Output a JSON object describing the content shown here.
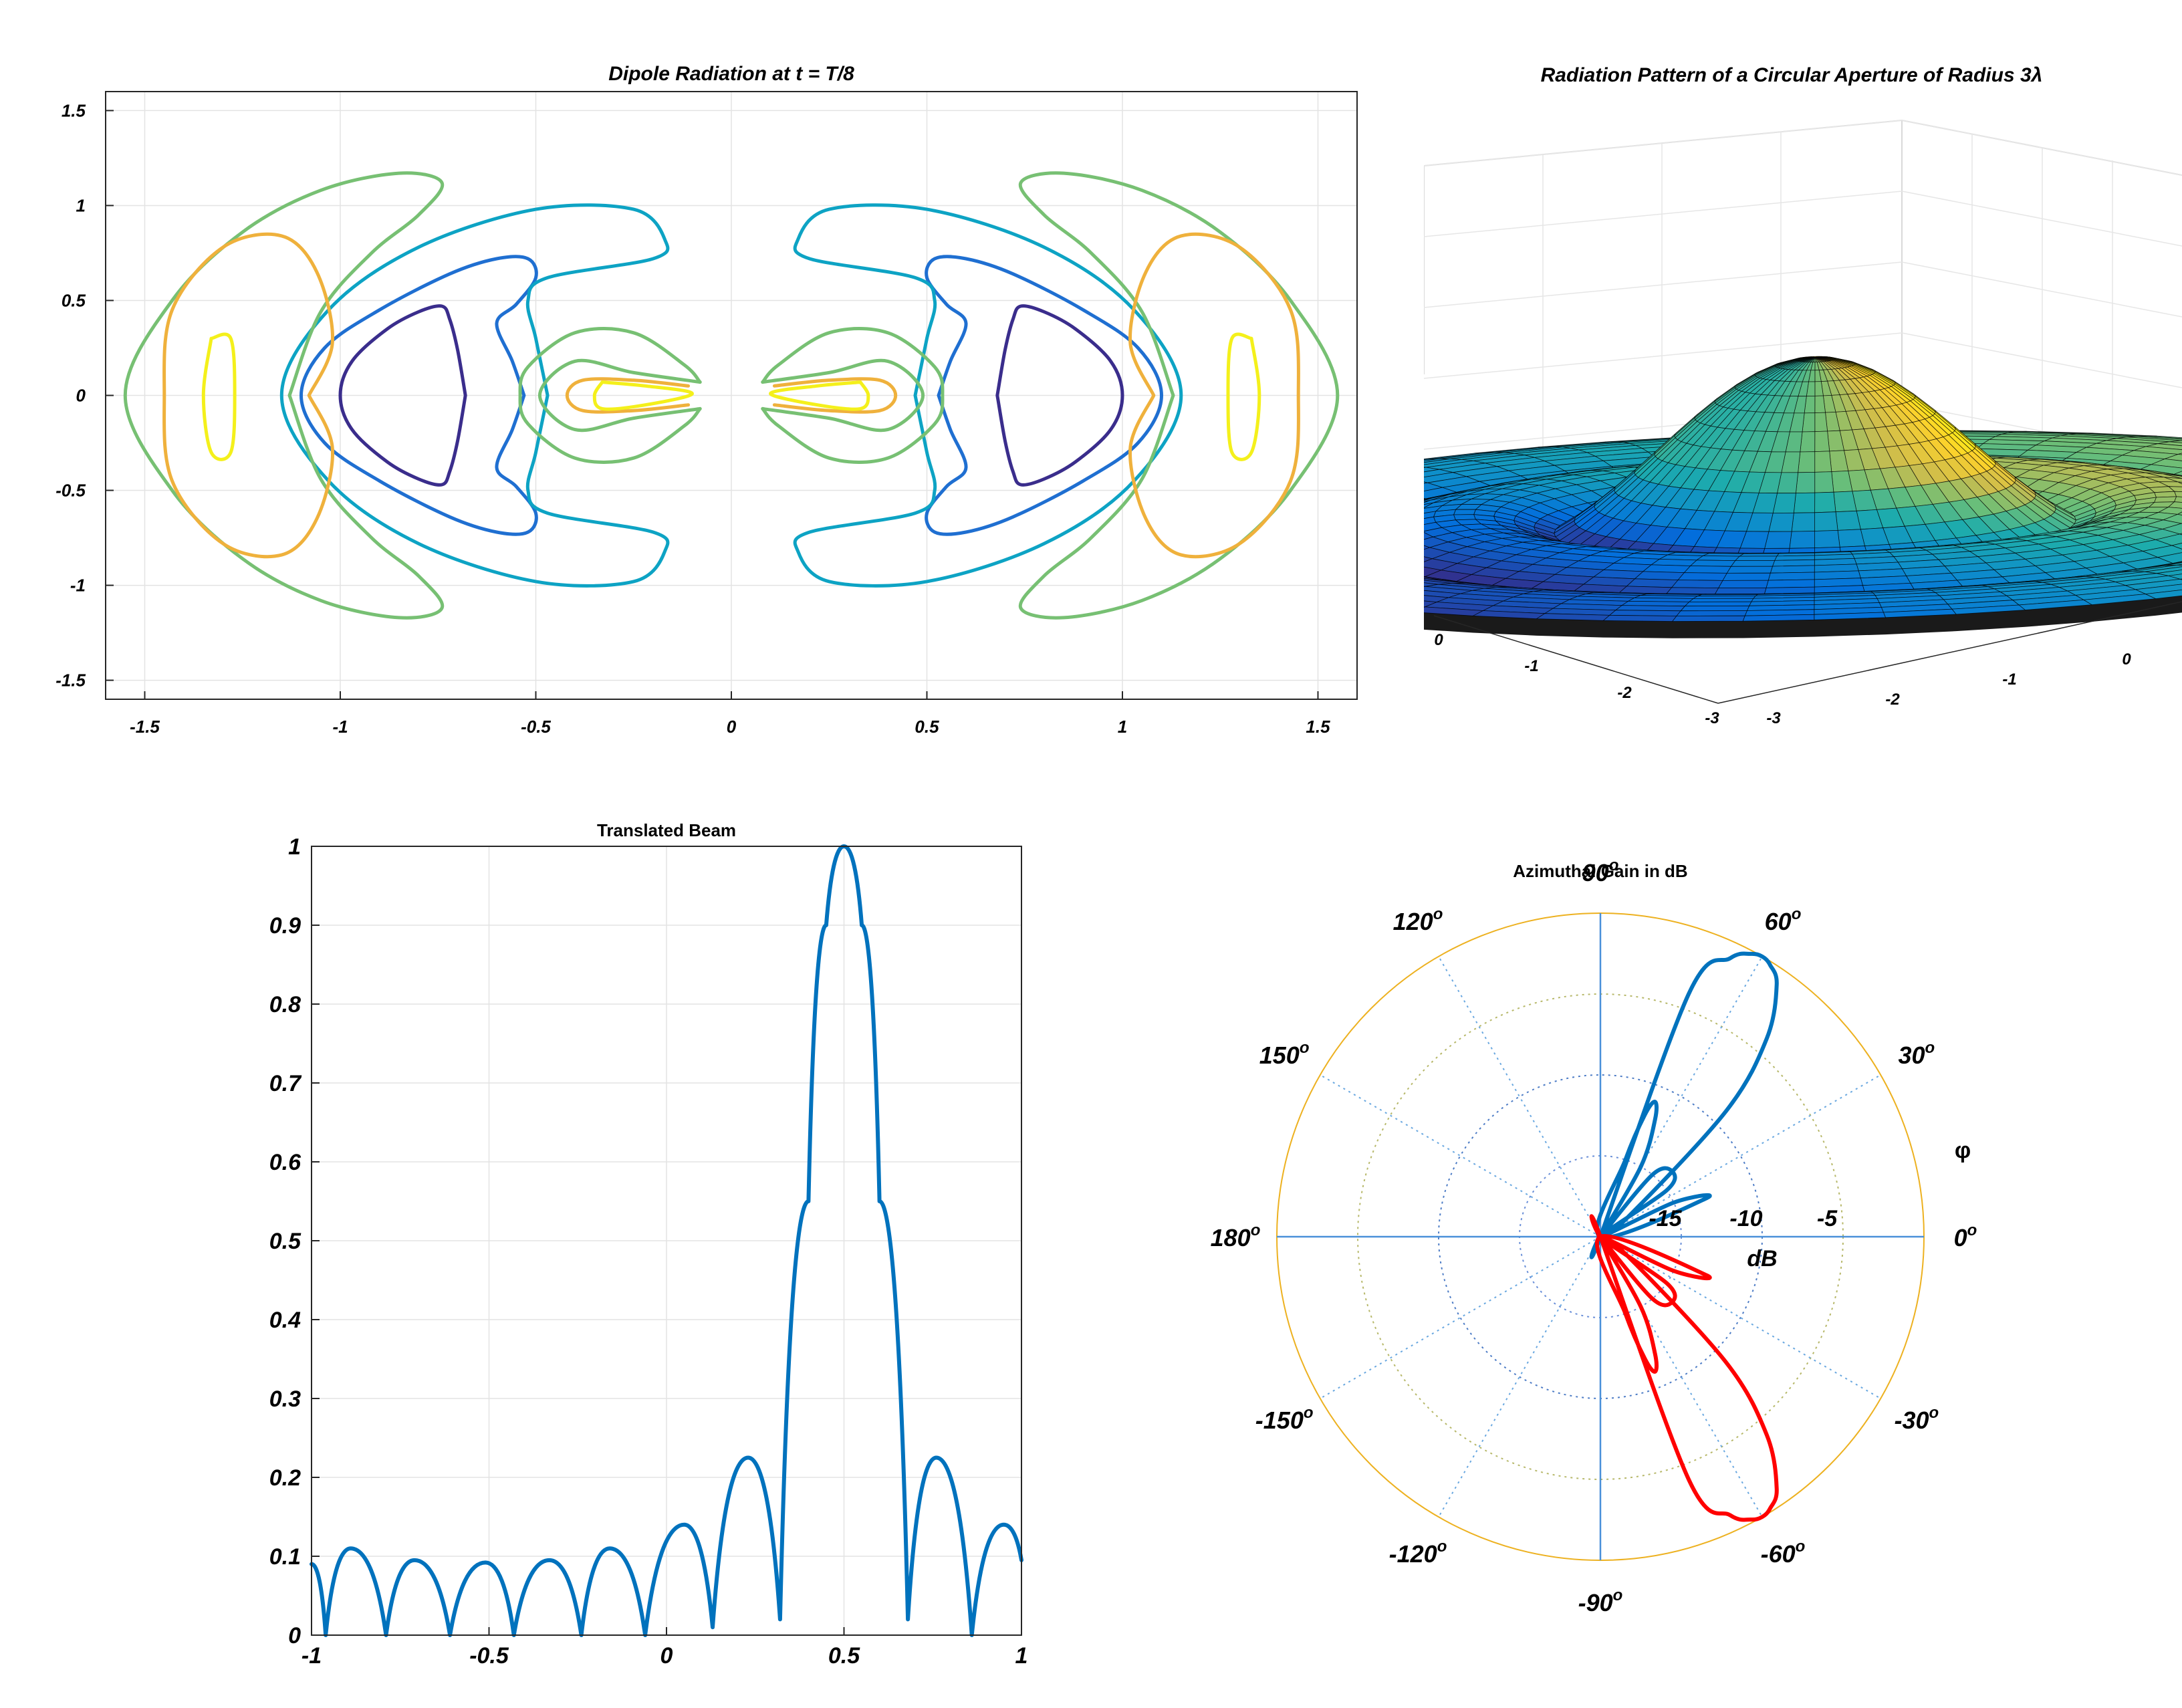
{
  "chart_data": [
    {
      "type": "contour",
      "title": "Dipole Radiation at t = T/8",
      "xlabel": "",
      "ylabel": "",
      "xlim": [
        -1.6,
        1.6
      ],
      "ylim": [
        -1.6,
        1.6
      ],
      "x_ticks": [
        "-1.5",
        "-1",
        "-0.5",
        "0",
        "0.5",
        "1",
        "1.5"
      ],
      "y_ticks": [
        "1.5",
        "1",
        "0.5",
        "0",
        "-0.5",
        "-1",
        "-1.5"
      ],
      "grid": true,
      "series": [
        {
          "color": "#3a2d8c",
          "curves": [
            {
              "x": [
                -0.68,
                -0.7,
                -0.72,
                -0.74,
                -0.8,
                -0.88,
                -0.97,
                -1.0,
                -0.97,
                -0.88,
                -0.8,
                -0.74,
                -0.72,
                -0.7,
                -0.68
              ],
              "y": [
                0.0,
                0.24,
                0.4,
                0.47,
                0.44,
                0.35,
                0.18,
                0.0,
                -0.18,
                -0.35,
                -0.44,
                -0.47,
                -0.4,
                -0.24,
                0.0
              ]
            },
            {
              "x": [
                0.68,
                0.7,
                0.72,
                0.74,
                0.8,
                0.88,
                0.97,
                1.0,
                0.97,
                0.88,
                0.8,
                0.74,
                0.72,
                0.7,
                0.68
              ],
              "y": [
                0.0,
                0.24,
                0.4,
                0.47,
                0.44,
                0.35,
                0.18,
                0.0,
                -0.18,
                -0.35,
                -0.44,
                -0.47,
                -0.4,
                -0.24,
                0.0
              ]
            }
          ]
        },
        {
          "color": "#1f6fd1",
          "curves": [
            {
              "x": [
                -0.53,
                -0.56,
                -0.6,
                -0.55,
                -0.5,
                -0.52,
                -0.6,
                -0.72,
                -0.9,
                -1.04,
                -1.1,
                -1.04,
                -0.9,
                -0.72,
                -0.6,
                -0.52,
                -0.5,
                -0.55,
                -0.6,
                -0.56,
                -0.53
              ],
              "y": [
                0.0,
                0.18,
                0.38,
                0.48,
                0.62,
                0.72,
                0.72,
                0.64,
                0.45,
                0.25,
                0.0,
                -0.25,
                -0.45,
                -0.64,
                -0.72,
                -0.72,
                -0.62,
                -0.48,
                -0.38,
                -0.18,
                0.0
              ]
            },
            {
              "x": [
                0.53,
                0.56,
                0.6,
                0.55,
                0.5,
                0.52,
                0.6,
                0.72,
                0.9,
                1.04,
                1.1,
                1.04,
                0.9,
                0.72,
                0.6,
                0.52,
                0.5,
                0.55,
                0.6,
                0.56,
                0.53
              ],
              "y": [
                0.0,
                0.18,
                0.38,
                0.48,
                0.62,
                0.72,
                0.72,
                0.64,
                0.45,
                0.25,
                0.0,
                -0.25,
                -0.45,
                -0.64,
                -0.72,
                -0.72,
                -0.62,
                -0.48,
                -0.38,
                -0.18,
                0.0
              ]
            }
          ]
        },
        {
          "color": "#0da3c4",
          "curves": [
            {
              "x": [
                -0.47,
                -0.5,
                -0.52,
                -0.47,
                -0.2,
                -0.17,
                -0.25,
                -0.5,
                -0.8,
                -1.03,
                -1.15,
                -1.03,
                -0.8,
                -0.5,
                -0.25,
                -0.17,
                -0.2,
                -0.47,
                -0.52,
                -0.5,
                -0.47
              ],
              "y": [
                0.0,
                0.3,
                0.5,
                0.62,
                0.72,
                0.82,
                0.98,
                0.98,
                0.78,
                0.45,
                0.0,
                -0.45,
                -0.78,
                -0.98,
                -0.98,
                -0.82,
                -0.72,
                -0.62,
                -0.5,
                -0.3,
                0.0
              ]
            },
            {
              "x": [
                0.47,
                0.5,
                0.52,
                0.47,
                0.2,
                0.17,
                0.25,
                0.5,
                0.8,
                1.03,
                1.15,
                1.03,
                0.8,
                0.5,
                0.25,
                0.17,
                0.2,
                0.47,
                0.52,
                0.5,
                0.47
              ],
              "y": [
                0.0,
                0.3,
                0.5,
                0.62,
                0.72,
                0.82,
                0.98,
                0.98,
                0.78,
                0.45,
                0.0,
                -0.45,
                -0.78,
                -0.98,
                -0.98,
                -0.82,
                -0.72,
                -0.62,
                -0.5,
                -0.3,
                0.0
              ]
            }
          ]
        },
        {
          "color": "#77c073",
          "curves": [
            {
              "x": [
                -0.08,
                -0.25,
                -0.4,
                -0.49,
                -0.4,
                -0.25,
                -0.08
              ],
              "y": [
                0.07,
                0.12,
                0.18,
                0.0,
                -0.18,
                -0.12,
                -0.07
              ]
            },
            {
              "x": [
                0.08,
                0.25,
                0.4,
                0.49,
                0.4,
                0.25,
                0.08
              ],
              "y": [
                0.07,
                0.12,
                0.18,
                0.0,
                -0.18,
                -0.12,
                -0.07
              ]
            },
            {
              "x": [
                -0.08,
                -0.12,
                -0.25,
                -0.4,
                -0.52,
                -0.54,
                -0.52,
                -0.4,
                -0.25,
                -0.12,
                -0.08
              ],
              "y": [
                0.07,
                0.16,
                0.33,
                0.33,
                0.15,
                0.0,
                -0.15,
                -0.33,
                -0.33,
                -0.16,
                -0.07
              ]
            },
            {
              "x": [
                0.08,
                0.12,
                0.25,
                0.4,
                0.52,
                0.54,
                0.52,
                0.4,
                0.25,
                0.12,
                0.08
              ],
              "y": [
                0.07,
                0.16,
                0.33,
                0.33,
                0.15,
                0.0,
                -0.15,
                -0.33,
                -0.33,
                -0.16,
                -0.07
              ]
            },
            {
              "x": [
                -1.13,
                -1.05,
                -0.92,
                -0.8,
                -0.74,
                -0.85,
                -1.05,
                -1.25,
                -1.43,
                -1.55,
                -1.43,
                -1.25,
                -1.05,
                -0.85,
                -0.74,
                -0.8,
                -0.92,
                -1.05,
                -1.13
              ],
              "y": [
                0.0,
                0.44,
                0.75,
                0.95,
                1.12,
                1.17,
                1.08,
                0.86,
                0.5,
                0.0,
                -0.5,
                -0.86,
                -1.08,
                -1.17,
                -1.12,
                -0.95,
                -0.75,
                -0.44,
                0.0
              ]
            },
            {
              "x": [
                1.13,
                1.05,
                0.92,
                0.8,
                0.74,
                0.85,
                1.05,
                1.25,
                1.43,
                1.55,
                1.43,
                1.25,
                1.05,
                0.85,
                0.74,
                0.8,
                0.92,
                1.05,
                1.13
              ],
              "y": [
                0.0,
                0.44,
                0.75,
                0.95,
                1.12,
                1.17,
                1.08,
                0.86,
                0.5,
                0.0,
                -0.5,
                -0.86,
                -1.08,
                -1.17,
                -1.12,
                -0.95,
                -0.75,
                -0.44,
                0.0
              ]
            }
          ]
        },
        {
          "color": "#efb13c",
          "curves": [
            {
              "x": [
                -0.11,
                -0.25,
                -0.38,
                -0.42,
                -0.38,
                -0.25,
                -0.11
              ],
              "y": [
                0.05,
                0.08,
                0.08,
                0.0,
                -0.08,
                -0.08,
                -0.05
              ]
            },
            {
              "x": [
                0.11,
                0.25,
                0.38,
                0.42,
                0.38,
                0.25,
                0.11
              ],
              "y": [
                0.05,
                0.08,
                0.08,
                0.0,
                -0.08,
                -0.08,
                -0.05
              ]
            },
            {
              "x": [
                -1.08,
                -1.02,
                -1.06,
                -1.15,
                -1.3,
                -1.43,
                -1.45,
                -1.43,
                -1.3,
                -1.15,
                -1.06,
                -1.02,
                -1.08
              ],
              "y": [
                0.0,
                0.28,
                0.65,
                0.84,
                0.78,
                0.45,
                0.0,
                -0.45,
                -0.78,
                -0.84,
                -0.65,
                -0.28,
                0.0
              ]
            },
            {
              "x": [
                1.08,
                1.02,
                1.06,
                1.15,
                1.3,
                1.43,
                1.45,
                1.43,
                1.3,
                1.15,
                1.06,
                1.02,
                1.08
              ],
              "y": [
                0.0,
                0.28,
                0.65,
                0.84,
                0.78,
                0.45,
                0.0,
                -0.45,
                -0.78,
                -0.84,
                -0.65,
                -0.28,
                0.0
              ]
            }
          ]
        },
        {
          "color": "#f4f01b",
          "curves": [
            {
              "x": [
                -1.33,
                -1.28,
                -1.27,
                -1.28,
                -1.33,
                -1.35,
                -1.33
              ],
              "y": [
                0.3,
                0.3,
                0.0,
                -0.3,
                -0.3,
                0.0,
                0.3
              ]
            },
            {
              "x": [
                1.33,
                1.28,
                1.27,
                1.28,
                1.33,
                1.35,
                1.33
              ],
              "y": [
                0.3,
                0.3,
                0.0,
                -0.3,
                -0.3,
                0.0,
                0.3
              ]
            },
            {
              "x": [
                -0.33,
                -0.22,
                -0.1,
                -0.22,
                -0.33,
                -0.35,
                -0.33
              ],
              "y": [
                0.07,
                0.05,
                0.01,
                -0.05,
                -0.07,
                0.0,
                0.07
              ]
            },
            {
              "x": [
                0.33,
                0.22,
                0.1,
                0.22,
                0.33,
                0.35,
                0.33
              ],
              "y": [
                0.07,
                0.05,
                0.01,
                -0.05,
                -0.07,
                0.0,
                0.07
              ]
            }
          ]
        }
      ]
    },
    {
      "type": "surface",
      "title": "Radiation Pattern of a Circular Aperture of Radius 3λ",
      "xlabel": "",
      "ylabel": "",
      "zlabel": "",
      "x_ticks": [
        "-3",
        "-2",
        "-1",
        "0"
      ],
      "y_ticks": [
        "-3",
        "-2",
        "-1",
        "0"
      ],
      "xlim": [
        -3,
        3
      ],
      "ylim": [
        -3,
        3
      ],
      "zlim": [
        0,
        1
      ],
      "grid": true,
      "function": "Airy pattern |2 J1(ka sinθ)/(ka sinθ)|",
      "radius_wavelengths": 3,
      "colormap": "parula"
    },
    {
      "type": "line",
      "title": "Translated Beam",
      "xlabel": "",
      "ylabel": "",
      "xlim": [
        -1,
        1
      ],
      "ylim": [
        0,
        1
      ],
      "x_ticks": [
        "-1",
        "-0.5",
        "0",
        "0.5",
        "1"
      ],
      "y_ticks": [
        "0",
        "0.1",
        "0.2",
        "0.3",
        "0.4",
        "0.5",
        "0.6",
        "0.7",
        "0.8",
        "0.9",
        "1"
      ],
      "grid": true,
      "series": [
        {
          "color": "#0072bd",
          "x": [
            -1.0,
            -0.96,
            -0.89,
            -0.79,
            -0.71,
            -0.61,
            -0.51,
            -0.43,
            -0.33,
            -0.24,
            -0.16,
            -0.06,
            0.05,
            0.13,
            0.23,
            0.32,
            0.4,
            0.45,
            0.5,
            0.55,
            0.6,
            0.68,
            0.76,
            0.86,
            0.95,
            1.0
          ],
          "y": [
            0.09,
            0.0,
            0.11,
            0.0,
            0.095,
            0.0,
            0.092,
            0.0,
            0.095,
            0.0,
            0.11,
            0.0,
            0.14,
            0.01,
            0.225,
            0.02,
            0.55,
            0.9,
            1.0,
            0.9,
            0.55,
            0.02,
            0.225,
            0.0,
            0.14,
            0.095
          ]
        }
      ]
    },
    {
      "type": "polar",
      "title": "Azimuthal Gain in dB",
      "xlabel": "dB",
      "ylabel": "",
      "angle_symbol": "φ",
      "angle_labels": [
        "0",
        "30",
        "60",
        "90",
        "120",
        "150",
        "180",
        "-150",
        "-120",
        "-90",
        "-60",
        "-30"
      ],
      "angle_degrees": [
        0,
        30,
        60,
        90,
        120,
        150,
        180,
        -150,
        -120,
        -90,
        -60,
        -30
      ],
      "degree_mark": "o",
      "radial_ticks": [
        "-15",
        "-10",
        "-5"
      ],
      "rlim": [
        -20,
        0
      ],
      "series": [
        {
          "color": "#0072bd",
          "angle": [
            0,
            20,
            35,
            45,
            50,
            55,
            58,
            60,
            62,
            65,
            70,
            80,
            60,
            50,
            42,
            35,
            30,
            25,
            20,
            75,
            72,
            70,
            68,
            65,
            60,
            50,
            40,
            30,
            20,
            10,
            0
          ],
          "r": [
            -20,
            -20,
            -18,
            -9,
            -4,
            -1,
            -0.2,
            0,
            -0.2,
            -1,
            -4,
            -20,
            -20,
            -15,
            -14,
            -15,
            -20,
            -15,
            -13,
            -20,
            -15,
            -12,
            -11,
            -12,
            -15,
            -20,
            -20,
            -20,
            -20,
            -20,
            -20
          ]
        },
        {
          "color": "#ff0000",
          "angle": [
            0,
            -20,
            -35,
            -45,
            -50,
            -55,
            -58,
            -60,
            -62,
            -65,
            -70,
            -80,
            -60,
            -50,
            -42,
            -35,
            -30,
            -25,
            -20,
            -75,
            -72,
            -70,
            -68,
            -65,
            -60,
            -50,
            -40,
            -30,
            -20,
            -10,
            0
          ],
          "r": [
            -20,
            -20,
            -18,
            -9,
            -4,
            -1,
            -0.2,
            0,
            -0.2,
            -1,
            -4,
            -20,
            -20,
            -15,
            -14,
            -15,
            -20,
            -15,
            -13,
            -20,
            -15,
            -12,
            -11,
            -12,
            -15,
            -20,
            -20,
            -20,
            -20,
            -20,
            -20
          ]
        }
      ]
    }
  ]
}
